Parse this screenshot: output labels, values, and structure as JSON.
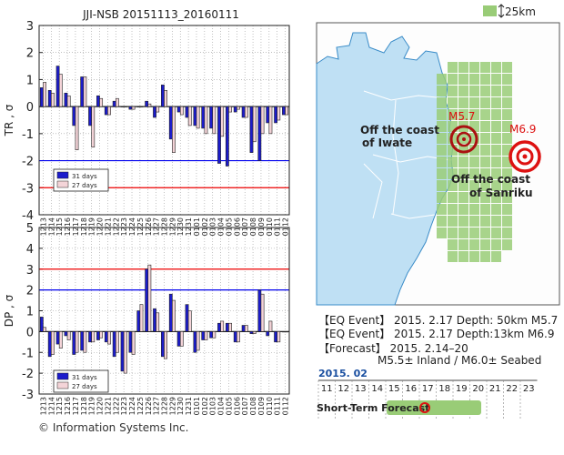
{
  "chart_data": [
    {
      "type": "bar",
      "title": "JJI-NSB 20151113_20160111",
      "ylabel": "TR , σ",
      "ylim": [
        -4,
        3
      ],
      "grid": true,
      "legend_position": "lower-left",
      "reference_lines": [
        {
          "value": -2,
          "color": "#0000ee"
        },
        {
          "value": -3,
          "color": "#ee0000"
        }
      ],
      "categories": [
        "1213",
        "1214",
        "1215",
        "1216",
        "1217",
        "1218",
        "1219",
        "1220",
        "1221",
        "1222",
        "1223",
        "1224",
        "1225",
        "1226",
        "1227",
        "1228",
        "1229",
        "1230",
        "1231",
        "0101",
        "0102",
        "0103",
        "0104",
        "0105",
        "0106",
        "0107",
        "0108",
        "0109",
        "0110",
        "0111",
        "0112"
      ],
      "series": [
        {
          "name": "31 days",
          "color": "#1c1ccc",
          "values": [
            0.7,
            0.6,
            1.5,
            0.5,
            -0.7,
            1.1,
            -0.7,
            0.4,
            -0.3,
            0.2,
            0.0,
            -0.1,
            0.0,
            0.2,
            -0.4,
            0.8,
            -1.2,
            -0.2,
            -0.4,
            -0.7,
            -0.8,
            -0.8,
            -2.1,
            -2.2,
            -0.2,
            -0.4,
            -1.7,
            -2.0,
            -0.6,
            -0.6,
            -0.3
          ]
        },
        {
          "name": "27 days",
          "color": "#f4d4d8",
          "values": [
            0.9,
            0.5,
            1.2,
            0.4,
            -1.6,
            1.1,
            -1.5,
            0.3,
            -0.3,
            0.3,
            0.0,
            -0.1,
            0.0,
            0.1,
            -0.2,
            0.6,
            -1.7,
            -0.3,
            -0.7,
            -0.8,
            -1.0,
            -1.0,
            -1.1,
            -0.2,
            -0.1,
            -0.4,
            -1.3,
            -1.0,
            -1.0,
            -0.5,
            -0.3
          ]
        }
      ]
    },
    {
      "type": "bar",
      "ylabel": "DP , σ",
      "ylim": [
        -3,
        5
      ],
      "grid": true,
      "legend_position": "lower-left",
      "reference_lines": [
        {
          "value": 3,
          "color": "#ee0000"
        },
        {
          "value": 2,
          "color": "#0000ee"
        }
      ],
      "categories": [
        "1213",
        "1214",
        "1215",
        "1216",
        "1217",
        "1218",
        "1219",
        "1220",
        "1221",
        "1222",
        "1223",
        "1224",
        "1225",
        "1226",
        "1227",
        "1228",
        "1229",
        "1230",
        "1231",
        "0101",
        "0102",
        "0103",
        "0104",
        "0105",
        "0106",
        "0107",
        "0108",
        "0109",
        "0110",
        "0111",
        "0112"
      ],
      "series": [
        {
          "name": "31 days",
          "color": "#1c1ccc",
          "values": [
            0.7,
            -1.2,
            -0.6,
            -0.2,
            -1.1,
            -0.9,
            -0.5,
            -0.4,
            -0.5,
            -1.2,
            -1.9,
            -1.0,
            1.0,
            3.0,
            1.1,
            -1.2,
            1.8,
            -0.7,
            1.3,
            -1.0,
            -0.4,
            -0.3,
            0.4,
            0.4,
            -0.5,
            0.3,
            -0.1,
            2.0,
            -0.2,
            -0.5,
            0.0
          ]
        },
        {
          "name": "27 days",
          "color": "#f4d4d8",
          "values": [
            0.2,
            -1.1,
            -0.8,
            -0.4,
            -1.0,
            -1.0,
            -0.5,
            -0.3,
            -0.6,
            -1.0,
            -2.0,
            -1.1,
            1.3,
            3.2,
            0.9,
            -1.3,
            1.5,
            -0.7,
            1.0,
            -0.9,
            -0.4,
            -0.3,
            0.5,
            0.4,
            -0.5,
            0.3,
            -0.1,
            1.8,
            0.5,
            -0.5,
            0.0
          ]
        }
      ]
    }
  ],
  "map": {
    "scale_label": "25km",
    "colors": {
      "grid": "#99cc77",
      "land": "#fdfdfd",
      "sea": "#bfe0f4",
      "marker": "#dd1111"
    },
    "labels": {
      "iwate": [
        "Off the coast",
        "of Iwate"
      ],
      "sanriku": [
        "Off the coast",
        "of Sanriku"
      ],
      "m57": "M5.7",
      "m69": "M6.9"
    }
  },
  "events": {
    "eq1": "【EQ Event】 2015. 2.17   Depth: 50km  M5.7",
    "eq2": "【EQ Event】 2015. 2.17   Depth:13km  M6.9",
    "forecast": "【Forecast】 2015. 2.14–20",
    "forecast_detail": "M5.5± Inland / M6.0± Seabed"
  },
  "timeline": {
    "month": "2015. 02",
    "days": [
      "11",
      "12",
      "13",
      "14",
      "15",
      "16",
      "17",
      "18",
      "19",
      "20",
      "21",
      "22",
      "23"
    ],
    "label": "Short-Term Forecast"
  },
  "copyright": "© Information Systems Inc."
}
